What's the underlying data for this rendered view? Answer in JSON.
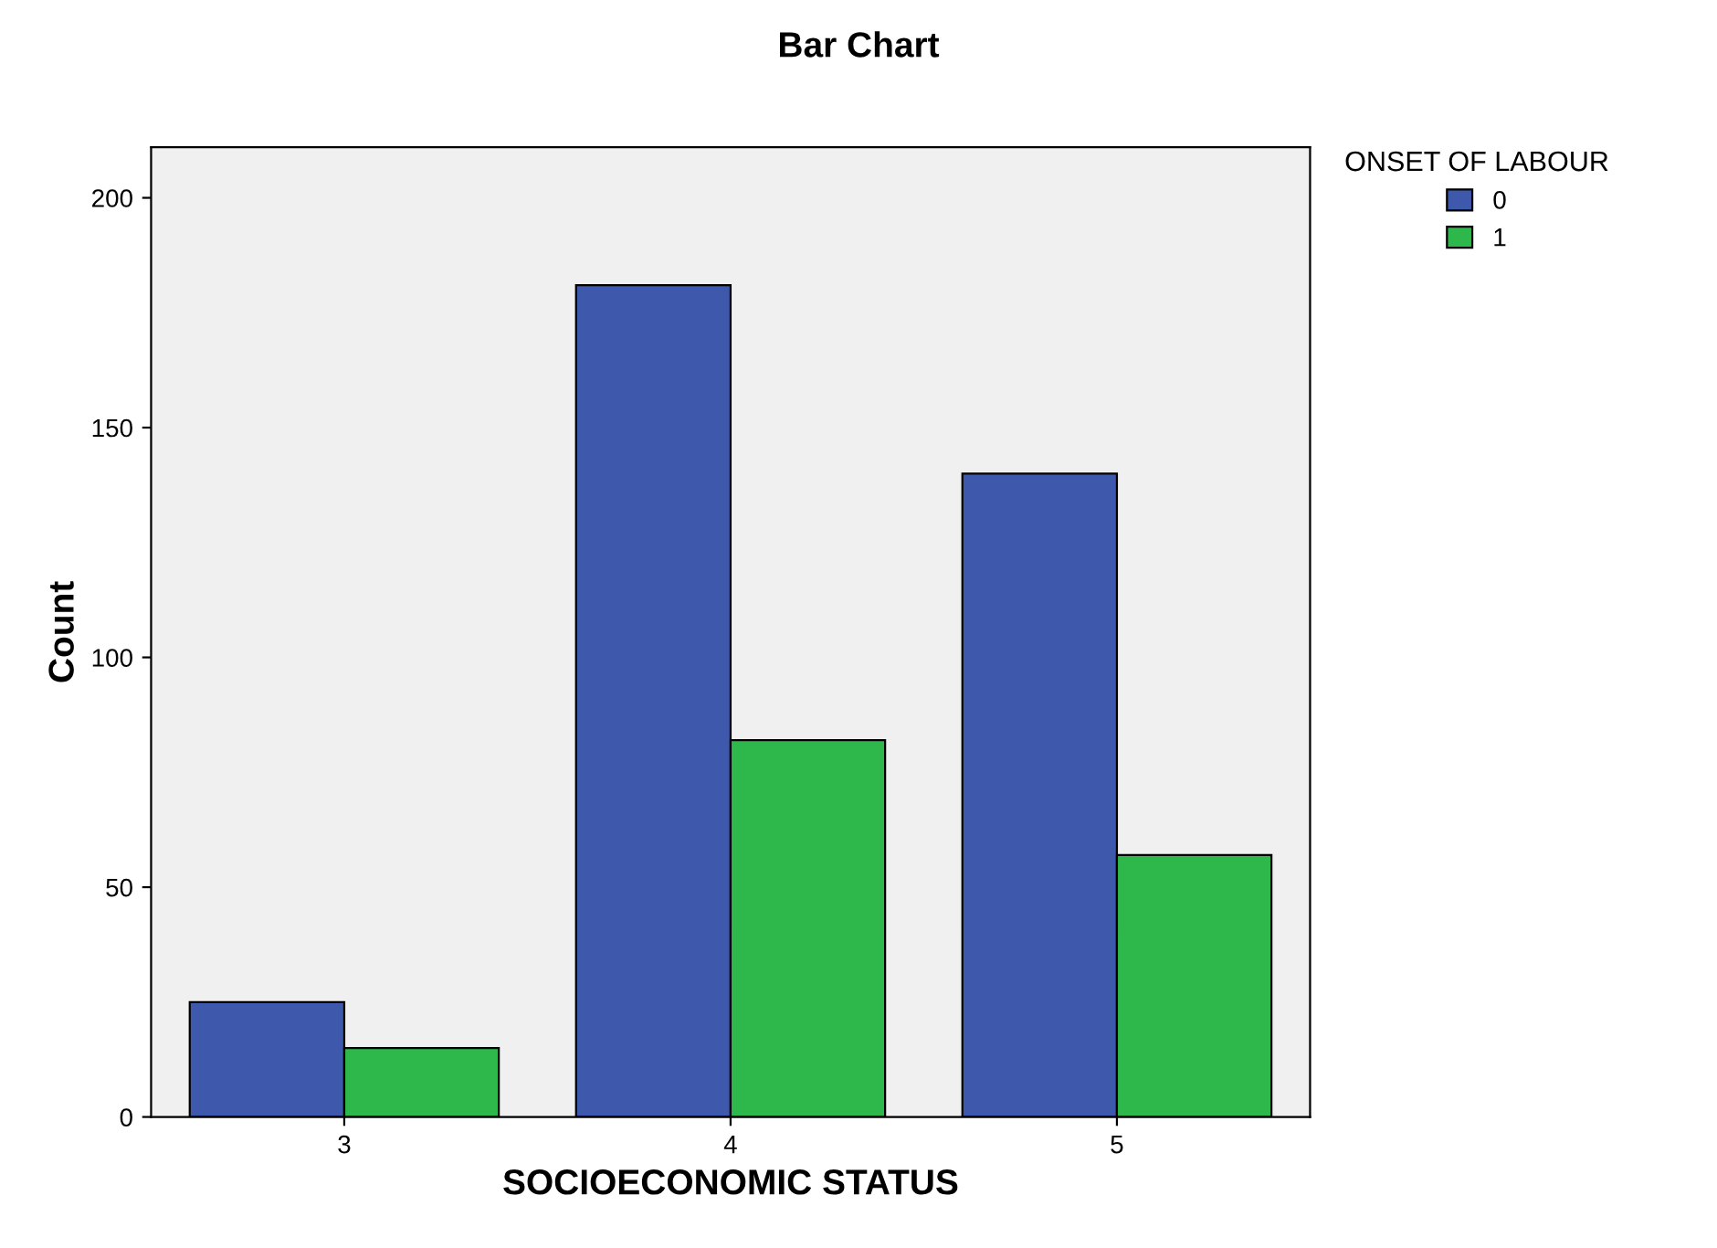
{
  "chart_data": {
    "type": "bar",
    "title": "Bar Chart",
    "xlabel": "SOCIOECONOMIC STATUS",
    "ylabel": "Count",
    "legend_title": "ONSET OF LABOUR",
    "categories": [
      "3",
      "4",
      "5"
    ],
    "series": [
      {
        "name": "0",
        "color": "#3e58ac",
        "values": [
          25,
          181,
          140
        ]
      },
      {
        "name": "1",
        "color": "#2eb84b",
        "values": [
          15,
          82,
          57
        ]
      }
    ],
    "ylim": [
      0,
      211
    ],
    "yticks": [
      0,
      50,
      100,
      150,
      200
    ],
    "grid": false,
    "legend": "right"
  }
}
